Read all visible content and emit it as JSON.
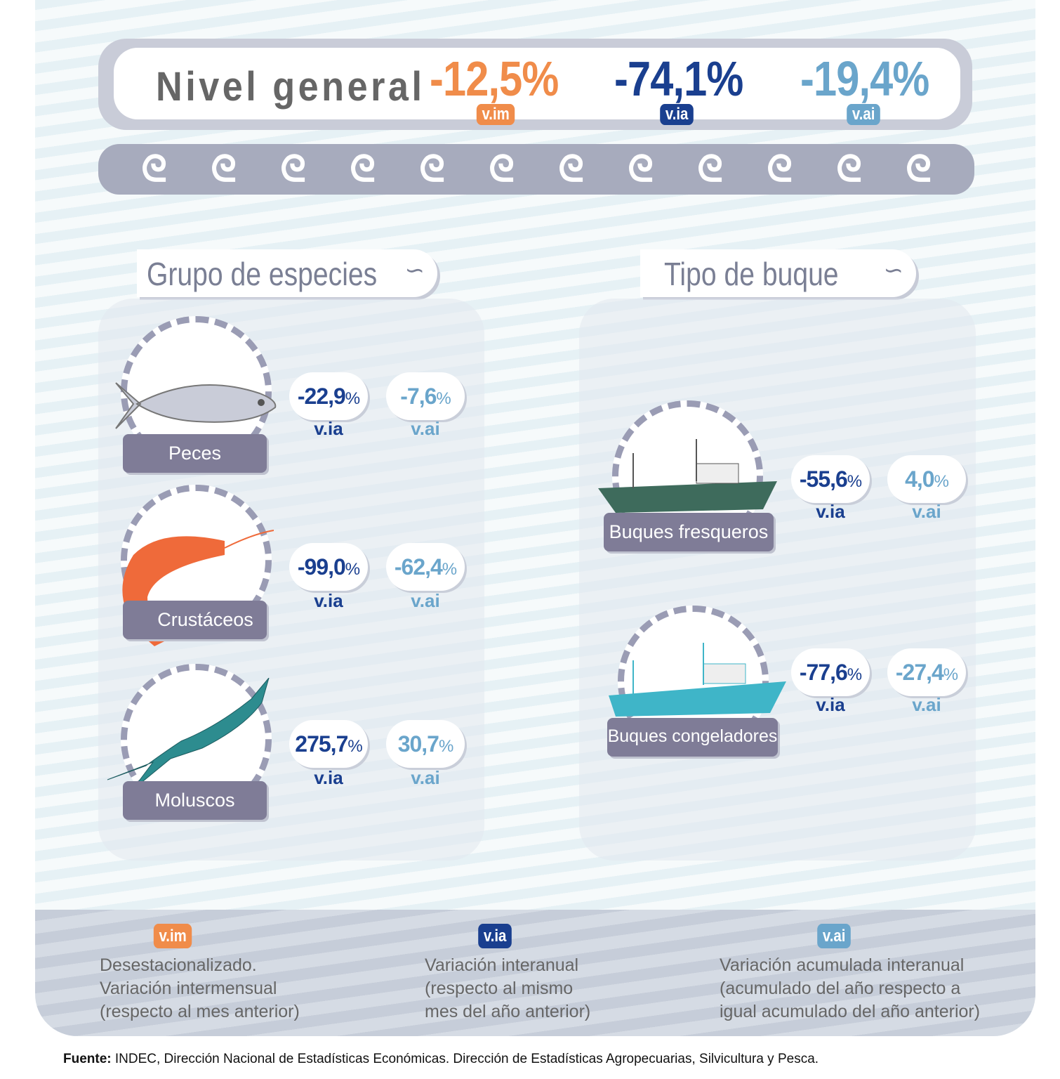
{
  "header": {
    "title": "Nivel general",
    "vim": "-12,5%",
    "via": "-74,1%",
    "vai": "-19,4%",
    "tag_vim": "v.im",
    "tag_via": "v.ia",
    "tag_vai": "v.ai"
  },
  "colors": {
    "vim": "#f08c4a",
    "via": "#1a3f8f",
    "vai": "#6aa5cb"
  },
  "sections": {
    "species": "Grupo de especies",
    "vessel": "Tipo de buque"
  },
  "species": [
    {
      "name": "Peces",
      "via": "-22,9",
      "vai": "-7,6",
      "icon": "fish-icon"
    },
    {
      "name": "Crustáceos",
      "via": "-99,0",
      "vai": "-62,4",
      "icon": "shrimp-icon"
    },
    {
      "name": "Moluscos",
      "via": "275,7",
      "vai": "30,7",
      "icon": "squid-icon"
    }
  ],
  "vessels": [
    {
      "name": "Buques fresqueros",
      "via": "-55,6",
      "vai": "4,0",
      "icon": "fresh-trawler-icon"
    },
    {
      "name": "Buques congeladores",
      "via": "-77,6",
      "vai": "-27,4",
      "icon": "freezer-trawler-icon"
    }
  ],
  "pct": "%",
  "legend": [
    {
      "tag": "v.im",
      "l1": "Desestacionalizado.",
      "l2": "Variación intermensual",
      "l3": "(respecto al mes anterior)"
    },
    {
      "tag": "v.ia",
      "l1": "Variación interanual",
      "l2": "(respecto al mismo",
      "l3": "mes del año anterior)"
    },
    {
      "tag": "v.ai",
      "l1": "Variación acumulada interanual",
      "l2": "(acumulado del año respecto a",
      "l3": "igual acumulado del año anterior)"
    }
  ],
  "source": {
    "label": "Fuente:",
    "text": " INDEC, Dirección Nacional de Estadísticas Económicas. Dirección de Estadísticas Agropecuarias, Silvicultura y Pesca."
  }
}
